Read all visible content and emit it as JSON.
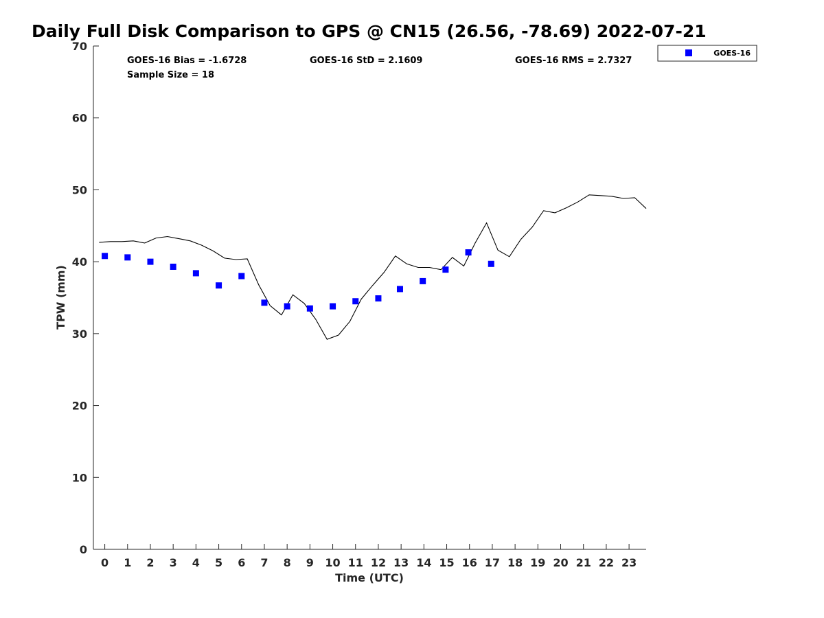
{
  "chart_data": {
    "type": "scatter",
    "title": "Daily Full Disk Comparison to GPS @ CN15 (26.56, -78.69) 2022-07-21",
    "xlabel": "Time (UTC)",
    "ylabel": "TPW (mm)",
    "xlim": [
      -0.5,
      23.75
    ],
    "ylim": [
      0,
      70
    ],
    "x_ticks": [
      0,
      1,
      2,
      3,
      4,
      5,
      6,
      7,
      8,
      9,
      10,
      11,
      12,
      13,
      14,
      15,
      16,
      17,
      18,
      19,
      20,
      21,
      22,
      23
    ],
    "y_ticks": [
      0,
      10,
      20,
      30,
      40,
      50,
      60,
      70
    ],
    "grid": false,
    "legend_position": "top-right",
    "stats": {
      "bias": "GOES-16 Bias = -1.6728",
      "std": "GOES-16 StD = 2.1609",
      "rms": "GOES-16 RMS = 2.7327",
      "sample_size": "Sample Size = 18"
    },
    "series": [
      {
        "name": "GOES-16",
        "kind": "scatter",
        "marker": "square",
        "color": "#0000ff",
        "x": [
          0.0,
          1.0,
          2.0,
          3.0,
          4.0,
          5.0,
          6.0,
          7.0,
          8.0,
          9.0,
          10.0,
          11.0,
          12.0,
          12.95,
          13.95,
          14.95,
          15.95,
          16.95
        ],
        "y": [
          40.8,
          40.6,
          40.0,
          39.3,
          38.4,
          36.7,
          38.0,
          34.3,
          33.8,
          33.5,
          33.8,
          34.5,
          34.9,
          36.2,
          37.3,
          38.9,
          41.3,
          39.7
        ]
      },
      {
        "kind": "line",
        "color": "#000000",
        "x": [
          -0.25,
          0.25,
          0.75,
          1.25,
          1.75,
          2.25,
          2.75,
          3.25,
          3.75,
          4.25,
          4.75,
          5.25,
          5.75,
          6.25,
          6.75,
          7.25,
          7.75,
          8.25,
          8.75,
          9.25,
          9.75,
          10.25,
          10.75,
          11.25,
          11.75,
          12.25,
          12.75,
          13.25,
          13.75,
          14.25,
          14.75,
          15.25,
          15.75,
          16.25,
          16.75,
          17.25,
          17.75,
          18.25,
          18.75,
          19.25,
          19.75,
          20.25,
          20.75,
          21.25,
          21.75,
          22.25,
          22.75,
          23.25,
          23.75
        ],
        "y": [
          42.7,
          42.8,
          42.8,
          42.9,
          42.6,
          43.3,
          43.5,
          43.2,
          42.9,
          42.3,
          41.5,
          40.5,
          40.3,
          40.4,
          36.8,
          33.9,
          32.6,
          35.4,
          34.2,
          32.0,
          29.2,
          29.8,
          31.7,
          34.8,
          36.7,
          38.5,
          40.8,
          39.7,
          39.2,
          39.2,
          38.9,
          40.6,
          39.4,
          42.6,
          45.4,
          41.6,
          40.7,
          43.1,
          44.8,
          47.1,
          46.8,
          47.5,
          48.3,
          49.3,
          49.2,
          49.1,
          48.8,
          48.9,
          47.4
        ]
      }
    ]
  }
}
